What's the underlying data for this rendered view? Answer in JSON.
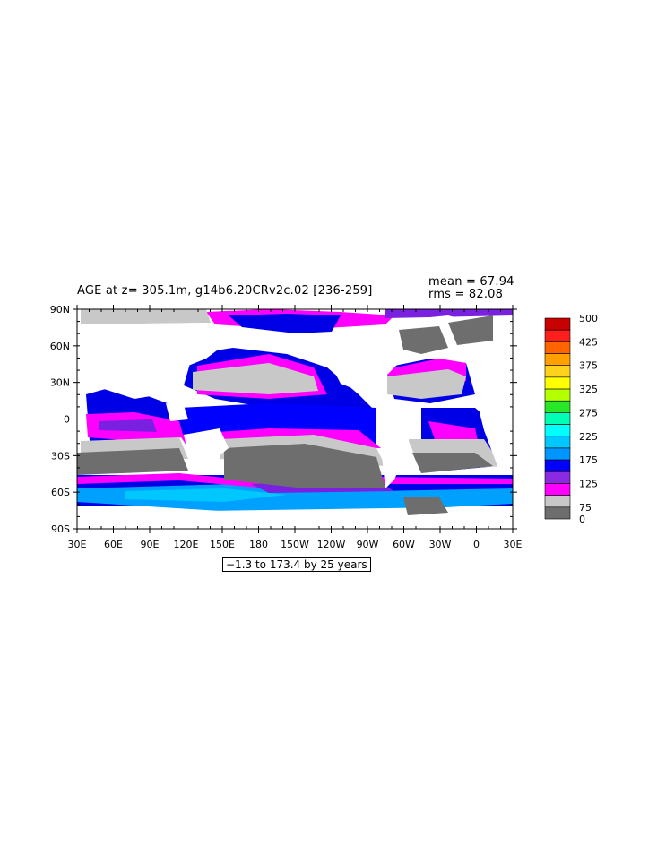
{
  "plot": {
    "title": "AGE at z= 305.1m, g14b6.20CRv2c.02 [236-259]",
    "mean_label": "mean = 67.94",
    "rms_label": "rms = 82.08",
    "range_label": "−1.3 to 173.4 by 25 years"
  },
  "axes": {
    "lat_ticks": [
      "90N",
      "60N",
      "30N",
      "0",
      "30S",
      "60S",
      "90S"
    ],
    "lon_ticks": [
      "30E",
      "60E",
      "90E",
      "120E",
      "150E",
      "180",
      "150W",
      "120W",
      "90W",
      "60W",
      "30W",
      "0",
      "30E"
    ]
  },
  "colorbar": {
    "labels": [
      "500",
      "425",
      "375",
      "325",
      "275",
      "225",
      "175",
      "125",
      "75",
      "0"
    ],
    "colors": [
      "#c80000",
      "#ff1e1e",
      "#ff6400",
      "#ffa000",
      "#ffd21e",
      "#ffff00",
      "#b4ff00",
      "#28e628",
      "#00ffb4",
      "#00ffff",
      "#00c8ff",
      "#0096ff",
      "#0000ff",
      "#8a2be2",
      "#ff00ff",
      "#c8c8c8",
      "#6e6e6e"
    ]
  },
  "chart_data": {
    "type": "heatmap",
    "title": "AGE at z= 305.1m, g14b6.20CRv2c.02 [236-259]",
    "variable": "AGE",
    "depth": "305.1m",
    "units": "years",
    "statistics": {
      "mean": 67.94,
      "rms": 82.08
    },
    "contour_range": {
      "min": -1.3,
      "max": 173.4,
      "interval": 25
    },
    "x_axis": {
      "type": "longitude",
      "range": [
        "30E",
        "30E"
      ],
      "ticks": [
        "30E",
        "60E",
        "90E",
        "120E",
        "150E",
        "180",
        "150W",
        "120W",
        "90W",
        "60W",
        "30W",
        "0",
        "30E"
      ]
    },
    "y_axis": {
      "type": "latitude",
      "range": [
        "90S",
        "90N"
      ],
      "ticks": [
        "90N",
        "60N",
        "30N",
        "0",
        "30S",
        "60S",
        "90S"
      ]
    },
    "legend": {
      "position": "right",
      "levels": [
        "0",
        "75",
        "125",
        "175",
        "225",
        "275",
        "325",
        "375",
        "425",
        "500"
      ]
    }
  }
}
